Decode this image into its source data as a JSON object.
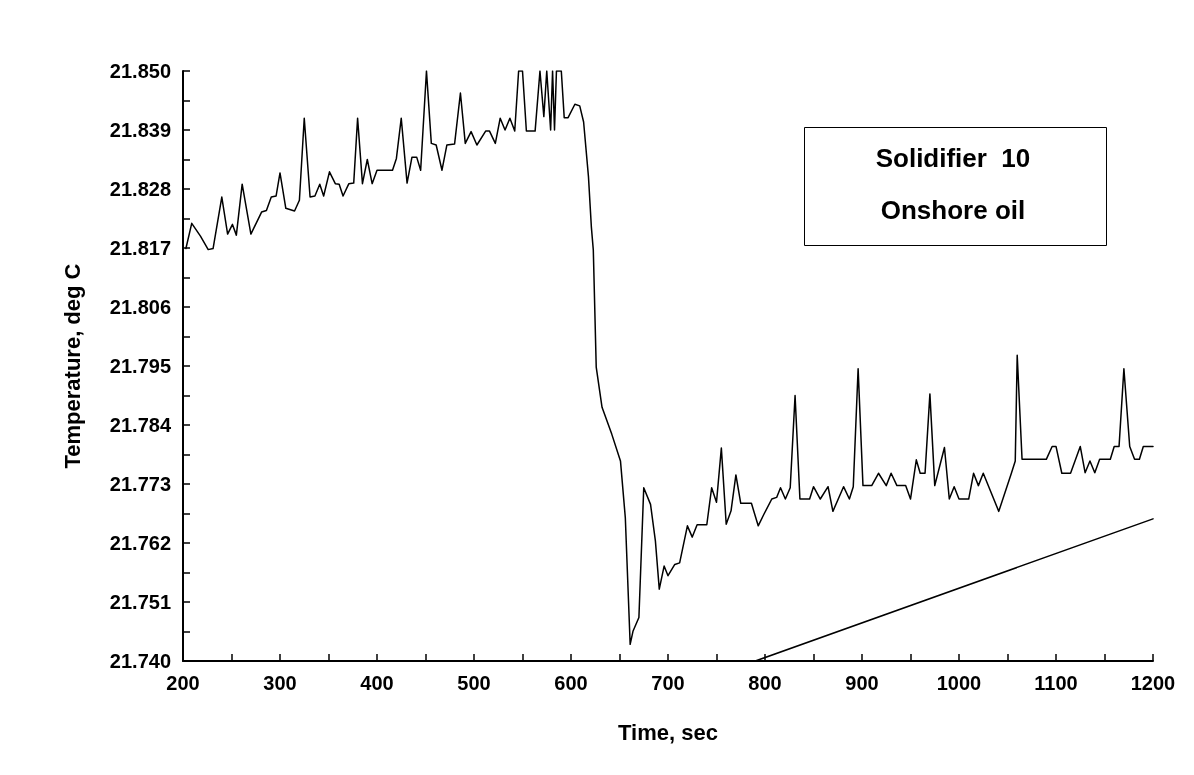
{
  "chart_data": {
    "type": "line",
    "xlabel": "Time, sec",
    "ylabel": "Temperature, deg C",
    "annotations": [
      "Solidifier  10",
      "Onshore oil"
    ],
    "series": [
      {
        "color": "#000000",
        "x": [
          203,
          209,
          218,
          226,
          231,
          240,
          246,
          251,
          255,
          261,
          270,
          281,
          286,
          291,
          296,
          300,
          306,
          315,
          320,
          325,
          331,
          336,
          341,
          345,
          351,
          357,
          361,
          365,
          371,
          376,
          380,
          385,
          390,
          395,
          400,
          416,
          420,
          425,
          431,
          436,
          441,
          445,
          451,
          456,
          461,
          467,
          472,
          480,
          486,
          491,
          497,
          503,
          512,
          516,
          522,
          527,
          532,
          537,
          542,
          546,
          550,
          554,
          563,
          568,
          572,
          575,
          579,
          581,
          583,
          585,
          590,
          593,
          597,
          604,
          609,
          613,
          618,
          621,
          623,
          626,
          632,
          642,
          651,
          656,
          661,
          664,
          670,
          675,
          682,
          687,
          691,
          696,
          700,
          707,
          712,
          720,
          725,
          730,
          740,
          745,
          750,
          755,
          760,
          765,
          770,
          775,
          786,
          793,
          799,
          807,
          812,
          816,
          821,
          826,
          831,
          836,
          846,
          850,
          857,
          865,
          870,
          881,
          887,
          891,
          896,
          901,
          910,
          917,
          925,
          930,
          936,
          945,
          950,
          956,
          960,
          965,
          970,
          975,
          985,
          990,
          995,
          1000,
          1010,
          1015,
          1020,
          1025,
          1041,
          1054,
          1058,
          1060,
          1065,
          1090,
          1096,
          1100,
          1106,
          1115,
          1125,
          1130,
          1135,
          1140,
          1145,
          1156,
          1160,
          1165,
          1170,
          1176,
          1181,
          1186,
          1190,
          1200
        ],
        "values": [
          21.8169,
          21.8216,
          21.8192,
          21.8167,
          21.8169,
          21.8265,
          21.8196,
          21.8214,
          21.8194,
          21.8289,
          21.8196,
          21.8237,
          21.824,
          21.8265,
          21.8267,
          21.831,
          21.8244,
          21.8239,
          21.8259,
          21.8412,
          21.8265,
          21.8267,
          21.8289,
          21.8267,
          21.8312,
          21.829,
          21.8289,
          21.8267,
          21.829,
          21.8291,
          21.8412,
          21.829,
          21.8335,
          21.829,
          21.8315,
          21.8315,
          21.8337,
          21.8412,
          21.8291,
          21.8339,
          21.8339,
          21.8315,
          21.85,
          21.8365,
          21.8362,
          21.8315,
          21.8362,
          21.8364,
          21.8459,
          21.8365,
          21.8387,
          21.8362,
          21.8388,
          21.8388,
          21.8365,
          21.8412,
          21.839,
          21.8412,
          21.8388,
          21.85,
          21.85,
          21.8388,
          21.8388,
          21.85,
          21.8415,
          21.85,
          21.839,
          21.85,
          21.839,
          21.85,
          21.85,
          21.8413,
          21.8413,
          21.8438,
          21.8435,
          21.8405,
          21.8303,
          21.8209,
          21.8166,
          21.7948,
          21.7873,
          21.7823,
          21.7773,
          21.7667,
          21.7431,
          21.7456,
          21.7481,
          21.7723,
          21.7692,
          21.7624,
          21.7534,
          21.7577,
          21.7559,
          21.758,
          21.7583,
          21.7652,
          21.7631,
          21.7654,
          21.7654,
          21.7723,
          21.7696,
          21.7797,
          21.7655,
          21.768,
          21.7747,
          21.7694,
          21.7694,
          21.7652,
          21.7674,
          21.7702,
          21.7705,
          21.7723,
          21.7702,
          21.7723,
          21.7895,
          21.7702,
          21.7702,
          21.7725,
          21.7702,
          21.7725,
          21.7679,
          21.7725,
          21.7702,
          21.7725,
          21.7945,
          21.7727,
          21.7727,
          21.775,
          21.7727,
          21.775,
          21.7727,
          21.7727,
          21.7702,
          21.7775,
          21.775,
          21.775,
          21.7898,
          21.7727,
          21.7798,
          21.7702,
          21.7725,
          21.7702,
          21.7702,
          21.775,
          21.7727,
          21.775,
          21.7679,
          21.775,
          21.7773,
          21.797,
          21.7776,
          21.7776,
          21.78,
          21.78,
          21.775,
          21.775,
          21.78,
          21.7751,
          21.7773,
          21.7751,
          21.7776,
          21.7776,
          21.78,
          21.78,
          21.7945,
          21.78,
          21.7776,
          21.7776,
          21.78,
          21.78
        ]
      },
      {
        "color": "#000000",
        "x": [
          790,
          1200
        ],
        "values": [
          21.74,
          21.7665
        ]
      }
    ],
    "xlim": [
      200,
      1200
    ],
    "xticks": [
      {
        "value": 200,
        "label": "200"
      },
      {
        "value": 250,
        "label": null
      },
      {
        "value": 300,
        "label": "300"
      },
      {
        "value": 350,
        "label": null
      },
      {
        "value": 400,
        "label": "400"
      },
      {
        "value": 450,
        "label": null
      },
      {
        "value": 500,
        "label": "500"
      },
      {
        "value": 550,
        "label": null
      },
      {
        "value": 600,
        "label": "600"
      },
      {
        "value": 650,
        "label": null
      },
      {
        "value": 700,
        "label": "700"
      },
      {
        "value": 750,
        "label": null
      },
      {
        "value": 800,
        "label": "800"
      },
      {
        "value": 850,
        "label": null
      },
      {
        "value": 900,
        "label": "900"
      },
      {
        "value": 950,
        "label": null
      },
      {
        "value": 1000,
        "label": "1000"
      },
      {
        "value": 1050,
        "label": null
      },
      {
        "value": 1100,
        "label": "1100"
      },
      {
        "value": 1150,
        "label": null
      },
      {
        "value": 1200,
        "label": "1200"
      }
    ],
    "ylim": [
      21.74,
      21.85
    ],
    "yticks": [
      {
        "value": 21.74,
        "label": "21.740"
      },
      {
        "value": 21.7455,
        "label": null
      },
      {
        "value": 21.751,
        "label": "21.751"
      },
      {
        "value": 21.7565,
        "label": null
      },
      {
        "value": 21.762,
        "label": "21.762"
      },
      {
        "value": 21.7675,
        "label": null
      },
      {
        "value": 21.773,
        "label": "21.773"
      },
      {
        "value": 21.7785,
        "label": null
      },
      {
        "value": 21.784,
        "label": "21.784"
      },
      {
        "value": 21.7895,
        "label": null
      },
      {
        "value": 21.795,
        "label": "21.795"
      },
      {
        "value": 21.8005,
        "label": null
      },
      {
        "value": 21.806,
        "label": "21.806"
      },
      {
        "value": 21.8115,
        "label": null
      },
      {
        "value": 21.817,
        "label": "21.817"
      },
      {
        "value": 21.8225,
        "label": null
      },
      {
        "value": 21.828,
        "label": "21.828"
      },
      {
        "value": 21.8335,
        "label": null
      },
      {
        "value": 21.839,
        "label": "21.839"
      },
      {
        "value": 21.8445,
        "label": null
      },
      {
        "value": 21.85,
        "label": "21.850"
      }
    ],
    "grid": false,
    "marker": "none",
    "line_style": "solid"
  }
}
